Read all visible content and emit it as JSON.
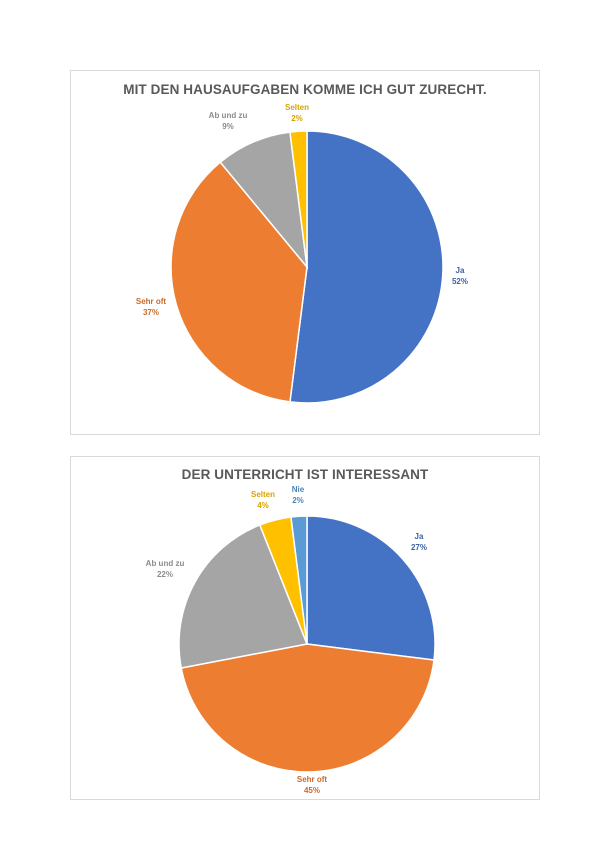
{
  "chart_data": [
    {
      "type": "pie",
      "title": "MIT DEN HAUSAUFGABEN KOMME ICH GUT ZURECHT.",
      "slices": [
        {
          "name": "Ja",
          "value": 52,
          "label": "52%",
          "color": "#4472C4"
        },
        {
          "name": "Sehr oft",
          "value": 37,
          "label": "37%",
          "color": "#ED7D31"
        },
        {
          "name": "Ab und zu",
          "value": 9,
          "label": "9%",
          "color": "#A5A5A5"
        },
        {
          "name": "Selten",
          "value": 2,
          "label": "2%",
          "color": "#FFC000"
        }
      ]
    },
    {
      "type": "pie",
      "title": "DER UNTERRICHT IST INTERESSANT",
      "slices": [
        {
          "name": "Ja",
          "value": 27,
          "label": "27%",
          "color": "#4472C4"
        },
        {
          "name": "Sehr oft",
          "value": 45,
          "label": "45%",
          "color": "#ED7D31"
        },
        {
          "name": "Ab und zu",
          "value": 22,
          "label": "22%",
          "color": "#A5A5A5"
        },
        {
          "name": "Selten",
          "value": 4,
          "label": "4%",
          "color": "#FFC000"
        },
        {
          "name": "Nie",
          "value": 2,
          "label": "2%",
          "color": "#5B9BD5"
        }
      ]
    }
  ]
}
